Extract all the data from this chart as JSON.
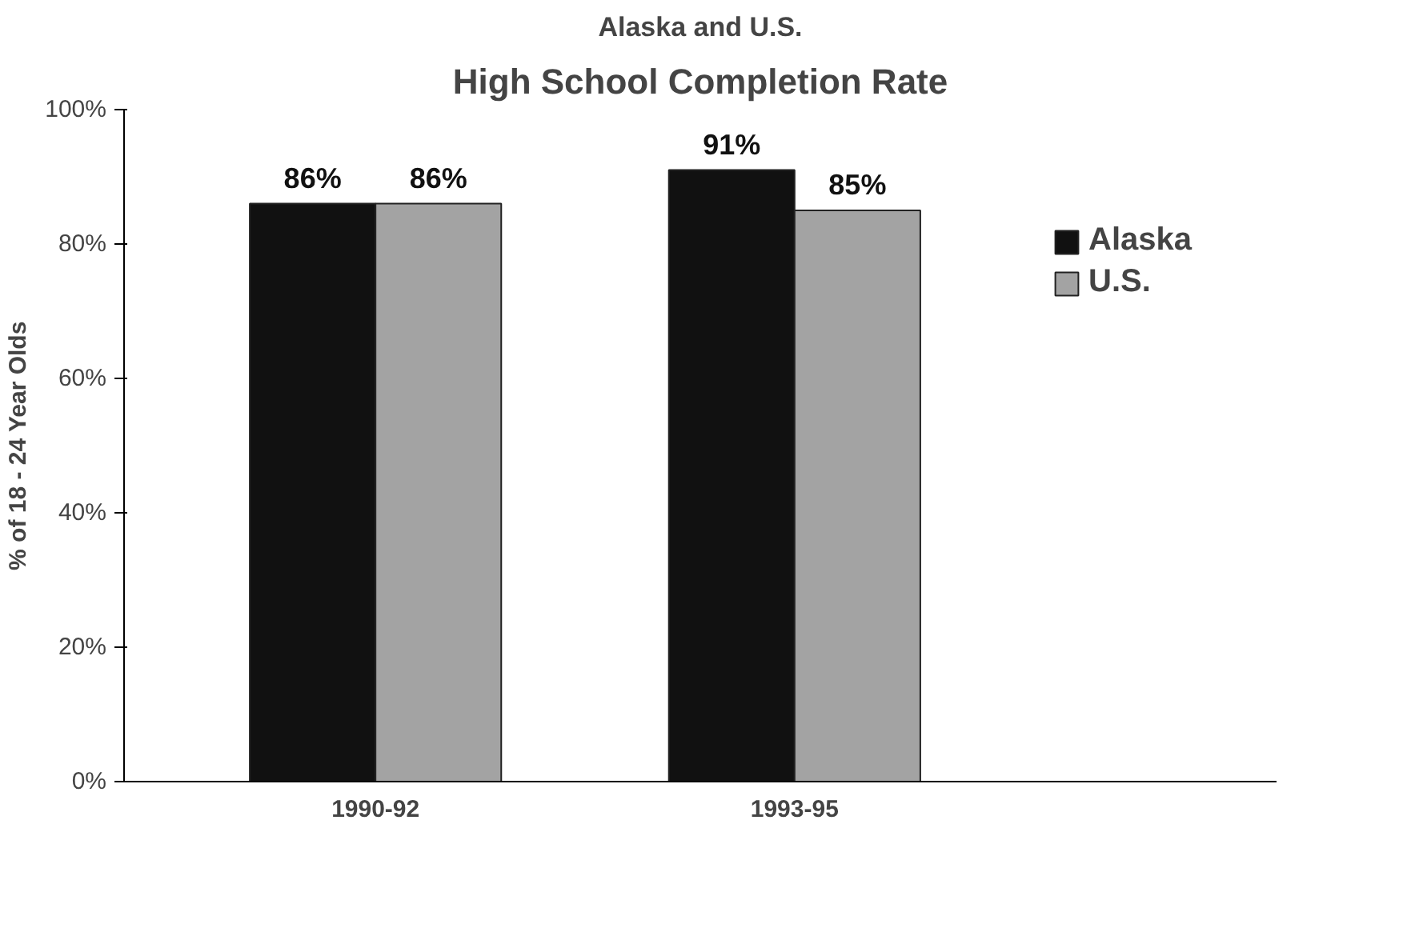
{
  "chart_data": {
    "type": "bar",
    "subtitle": "Alaska and U.S.",
    "title": "High School Completion Rate",
    "ylabel": "% of 18 - 24 Year Olds",
    "categories": [
      "1990-92",
      "1993-95"
    ],
    "series": [
      {
        "name": "Alaska",
        "color": "#111111",
        "values": [
          86,
          91
        ],
        "value_labels": [
          "86%",
          "91%"
        ]
      },
      {
        "name": "U.S.",
        "color": "#a3a3a3",
        "values": [
          86,
          85
        ],
        "value_labels": [
          "86%",
          "85%"
        ]
      }
    ],
    "ylim": [
      0,
      100
    ],
    "yticks": [
      {
        "value": 0,
        "label": "0%"
      },
      {
        "value": 20,
        "label": "20%"
      },
      {
        "value": 40,
        "label": "40%"
      },
      {
        "value": 60,
        "label": "60%"
      },
      {
        "value": 80,
        "label": "80%"
      },
      {
        "value": 100,
        "label": "100%"
      }
    ],
    "grid": false,
    "legend": "right"
  }
}
